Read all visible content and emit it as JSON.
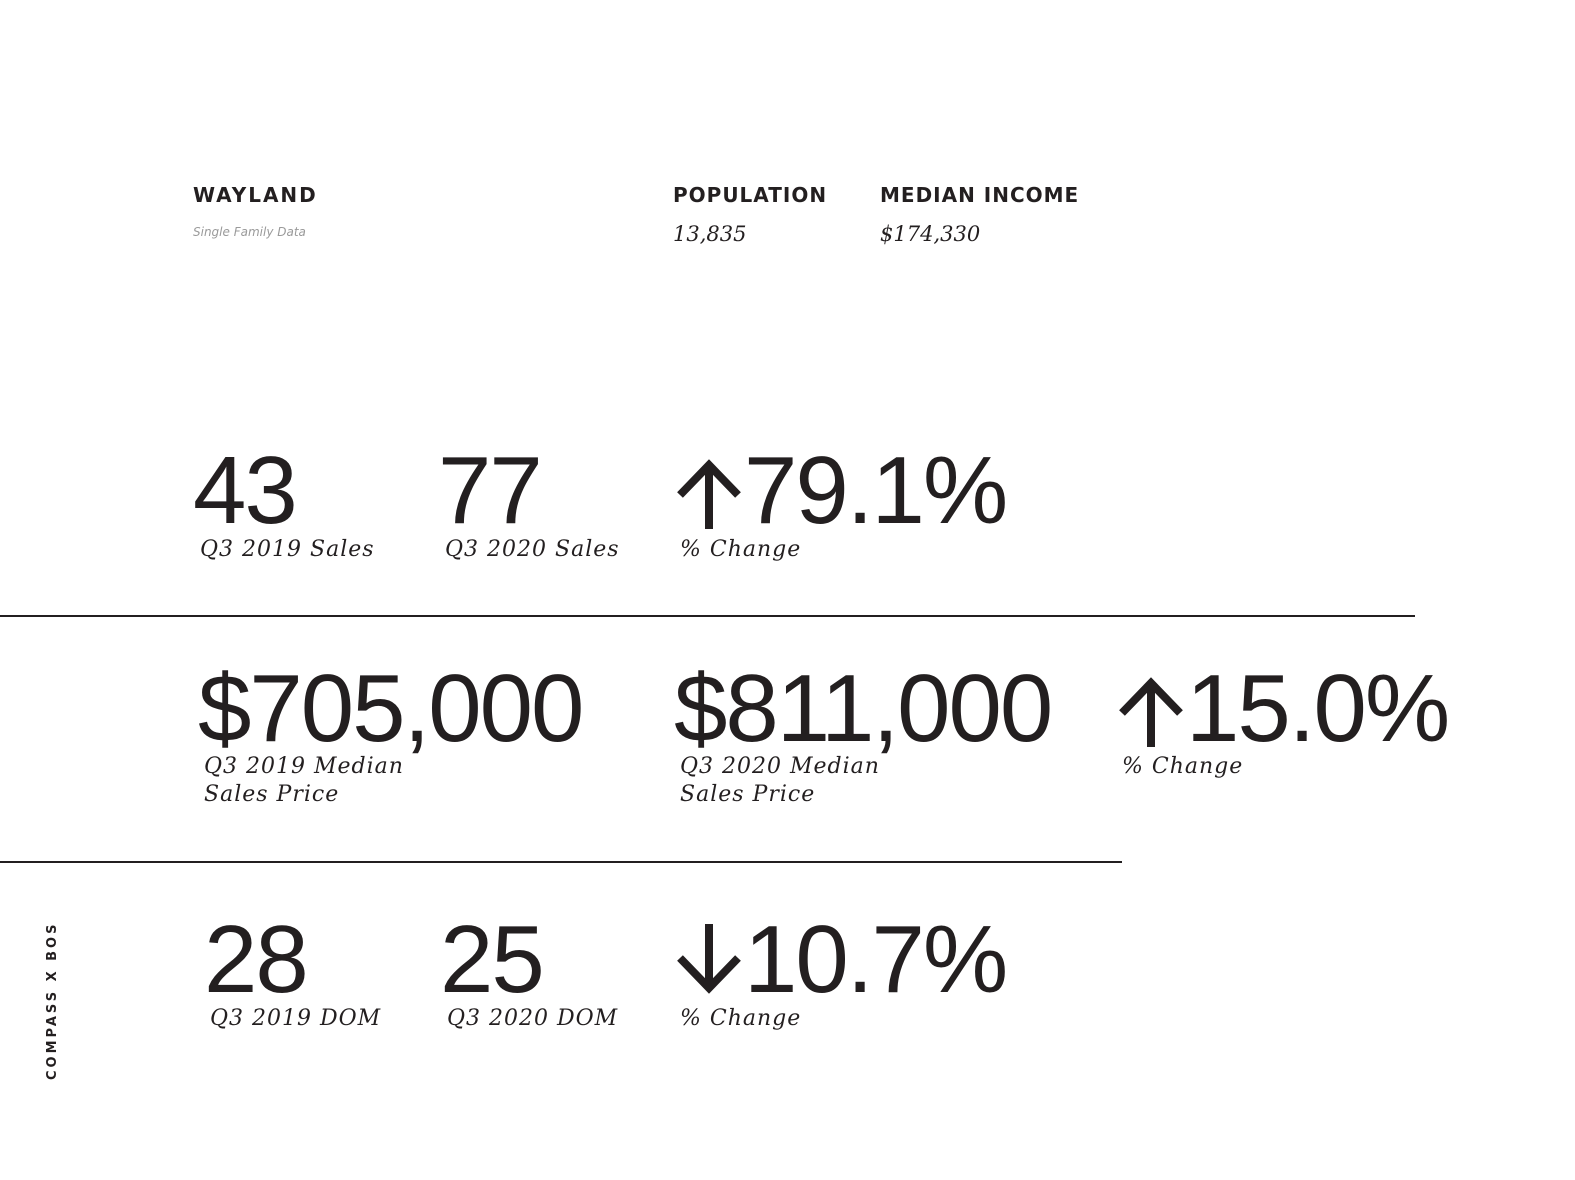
{
  "header": {
    "town": "WAYLAND",
    "subtitle": "Single Family Data",
    "population_label": "POPULATION",
    "population_value": "13,835",
    "income_label": "MEDIAN INCOME",
    "income_value": "$174,330"
  },
  "sales": {
    "q3_2019_value": "43",
    "q3_2019_label": "Q3 2019 Sales",
    "q3_2020_value": "77",
    "q3_2020_label": "Q3 2020 Sales",
    "change_direction": "up",
    "change_value": "79.1%",
    "change_label": "% Change"
  },
  "price": {
    "q3_2019_value": "$705,000",
    "q3_2019_label_line1": "Q3 2019 Median",
    "q3_2019_label_line2": "Sales Price",
    "q3_2020_value": "$811,000",
    "q3_2020_label_line1": "Q3 2020 Median",
    "q3_2020_label_line2": "Sales Price",
    "change_direction": "up",
    "change_value": "15.0%",
    "change_label": "% Change"
  },
  "dom": {
    "q3_2019_value": "28",
    "q3_2019_label": "Q3 2019 DOM",
    "q3_2020_value": "25",
    "q3_2020_label": "Q3 2020 DOM",
    "change_direction": "down",
    "change_value": "10.7%",
    "change_label": "% Change"
  },
  "brand": {
    "text": "COMPASS X BOS"
  },
  "colors": {
    "text": "#231f20",
    "subtle": "#9a9a9a",
    "background": "#ffffff"
  },
  "icons": {
    "up": "arrow-up-icon",
    "down": "arrow-down-icon"
  }
}
